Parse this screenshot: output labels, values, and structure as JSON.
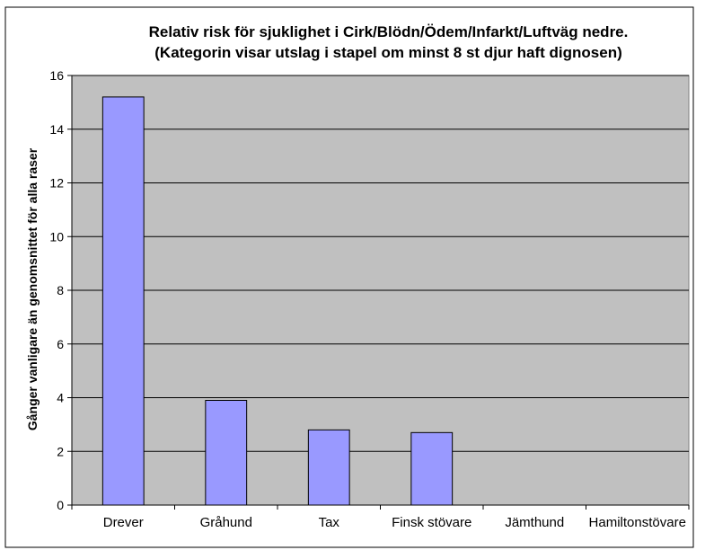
{
  "chart_data": {
    "type": "bar",
    "title": "Relativ risk för sjuklighet i Cirk/Blödn/Ödem/Infarkt/Luftväg nedre.",
    "subtitle": "(Kategorin visar utslag i stapel om minst 8 st djur haft dignosen)",
    "xlabel": "",
    "ylabel": "Gånger vanligare än genomsnittet för alla raser",
    "categories": [
      "Drever",
      "Gråhund",
      "Tax",
      "Finsk stövare",
      "Jämthund",
      "Hamiltonstövare"
    ],
    "values": [
      15.2,
      3.9,
      2.8,
      2.7,
      null,
      null
    ],
    "ylim": [
      0,
      16
    ],
    "yticks": [
      0,
      2,
      4,
      6,
      8,
      10,
      12,
      14,
      16
    ],
    "grid": true,
    "legend": "none",
    "colors": {
      "bar_fill": "#9999ff",
      "bar_stroke": "#000000",
      "plot_background": "#c0c0c0",
      "gridline": "#000000"
    }
  }
}
